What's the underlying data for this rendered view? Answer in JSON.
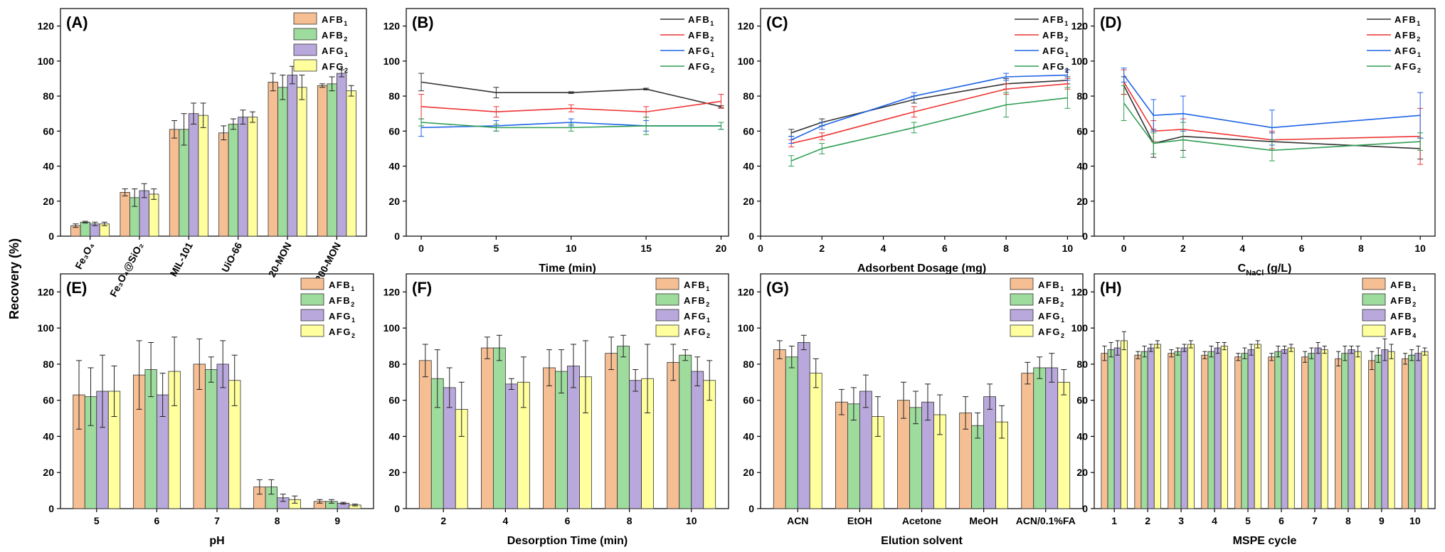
{
  "figure": {
    "y_label": "Recovery (%)"
  },
  "colors": {
    "bar": [
      "#f6bf93",
      "#9edc9d",
      "#b9a8dc",
      "#ffff9e"
    ],
    "line": [
      "#333333",
      "#ee3333",
      "#1e63e6",
      "#2e9e52"
    ]
  },
  "chart_data": [
    {
      "id": "A",
      "title": "(A)",
      "type": "bar",
      "xlabel": "",
      "ylabel": "Recovery (%)",
      "ylim": [
        0,
        130
      ],
      "yticks": [
        0,
        20,
        40,
        60,
        80,
        100,
        120
      ],
      "categories": [
        "Fe₃O₄",
        "Fe₃O₄@SiO₂",
        "MIL-101",
        "UiO-66",
        "20-MON",
        "200-MON"
      ],
      "rotate_labels": true,
      "legend": {
        "position": "top-right"
      },
      "series": [
        {
          "name": "AFB",
          "sub": "1",
          "values": [
            6,
            25,
            61,
            59,
            88,
            86
          ],
          "errors": [
            1,
            2,
            5,
            4,
            5,
            1
          ]
        },
        {
          "name": "AFB",
          "sub": "2",
          "values": [
            8,
            22,
            61,
            64,
            85,
            87
          ],
          "errors": [
            0.5,
            5,
            9,
            3,
            7,
            4
          ]
        },
        {
          "name": "AFG",
          "sub": "1",
          "values": [
            7,
            26,
            70,
            68,
            92,
            93
          ],
          "errors": [
            1,
            4,
            6,
            4,
            5,
            2
          ]
        },
        {
          "name": "AFG",
          "sub": "2",
          "values": [
            7,
            24,
            69,
            68,
            85,
            83
          ],
          "errors": [
            1,
            3,
            7,
            3,
            7,
            3
          ]
        }
      ]
    },
    {
      "id": "B",
      "title": "(B)",
      "type": "line",
      "xlabel": "Time (min)",
      "ylim": [
        0,
        130
      ],
      "xlim": [
        -1,
        20.5
      ],
      "yticks": [
        0,
        20,
        40,
        60,
        80,
        100,
        120
      ],
      "xticks": [
        0,
        5,
        10,
        15,
        20
      ],
      "legend": {
        "position": "top-right"
      },
      "series": [
        {
          "name": "AFB",
          "sub": "1",
          "x": [
            0,
            5,
            10,
            15,
            20
          ],
          "y": [
            88,
            82,
            82,
            84,
            74
          ],
          "errors": [
            5,
            3,
            0.5,
            0.5,
            0.5
          ]
        },
        {
          "name": "AFB",
          "sub": "2",
          "x": [
            0,
            5,
            10,
            15,
            20
          ],
          "y": [
            74,
            71,
            73,
            71,
            77
          ],
          "errors": [
            7,
            3,
            2,
            3,
            4
          ]
        },
        {
          "name": "AFG",
          "sub": "1",
          "x": [
            0,
            5,
            10,
            15,
            20
          ],
          "y": [
            62,
            63,
            65,
            63,
            63
          ],
          "errors": [
            5,
            3,
            2,
            3,
            2
          ]
        },
        {
          "name": "AFG",
          "sub": "2",
          "x": [
            0,
            5,
            10,
            15,
            20
          ],
          "y": [
            65,
            62,
            62,
            63,
            63
          ],
          "errors": [
            2,
            2,
            2,
            5,
            2
          ]
        }
      ]
    },
    {
      "id": "C",
      "title": "(C)",
      "type": "line",
      "xlabel": "Adsorbent Dosage (mg)",
      "ylim": [
        0,
        130
      ],
      "xlim": [
        0,
        10.5
      ],
      "yticks": [
        0,
        20,
        40,
        60,
        80,
        100,
        120
      ],
      "xticks": [
        0,
        2,
        4,
        6,
        8,
        10
      ],
      "legend": {
        "position": "top-right"
      },
      "series": [
        {
          "name": "AFB",
          "sub": "1",
          "x": [
            1,
            2,
            5,
            8,
            10
          ],
          "y": [
            59,
            65,
            78,
            87,
            89
          ],
          "errors": [
            2,
            2,
            2,
            3,
            2
          ]
        },
        {
          "name": "AFB",
          "sub": "2",
          "x": [
            1,
            2,
            5,
            8,
            10
          ],
          "y": [
            53,
            57,
            71,
            84,
            87
          ],
          "errors": [
            2,
            2,
            3,
            3,
            3
          ]
        },
        {
          "name": "AFG",
          "sub": "1",
          "x": [
            1,
            2,
            5,
            8,
            10
          ],
          "y": [
            55,
            63,
            80,
            91,
            92
          ],
          "errors": [
            2,
            2,
            2,
            2,
            3
          ]
        },
        {
          "name": "AFG",
          "sub": "2",
          "x": [
            1,
            2,
            5,
            8,
            10
          ],
          "y": [
            43,
            50,
            62,
            75,
            79
          ],
          "errors": [
            3,
            3,
            3,
            7,
            6
          ]
        }
      ]
    },
    {
      "id": "D",
      "title": "(D)",
      "type": "line",
      "xlabel": "C",
      "xlabel_sub": "NaCl",
      "xlabel_tail": " (g/L)",
      "ylim": [
        0,
        130
      ],
      "xlim": [
        -1,
        10.5
      ],
      "yticks": [
        0,
        20,
        40,
        60,
        80,
        100,
        120
      ],
      "xticks": [
        0,
        2,
        4,
        6,
        8,
        10
      ],
      "legend": {
        "position": "top-right"
      },
      "series": [
        {
          "name": "AFB",
          "sub": "1",
          "x": [
            0,
            1,
            2,
            5,
            10
          ],
          "y": [
            86,
            53,
            57,
            54,
            50
          ],
          "errors": [
            5,
            8,
            8,
            5,
            6
          ]
        },
        {
          "name": "AFB",
          "sub": "2",
          "x": [
            0,
            1,
            2,
            5,
            10
          ],
          "y": [
            88,
            60,
            61,
            55,
            57
          ],
          "errors": [
            7,
            6,
            6,
            5,
            16
          ]
        },
        {
          "name": "AFG",
          "sub": "1",
          "x": [
            0,
            1,
            2,
            5,
            10
          ],
          "y": [
            92,
            69,
            70,
            62,
            69
          ],
          "errors": [
            4,
            9,
            10,
            10,
            13
          ]
        },
        {
          "name": "AFG",
          "sub": "2",
          "x": [
            0,
            1,
            2,
            5,
            10
          ],
          "y": [
            76,
            53,
            55,
            49,
            54
          ],
          "errors": [
            10,
            6,
            10,
            6,
            5
          ]
        }
      ]
    },
    {
      "id": "E",
      "title": "(E)",
      "type": "bar",
      "xlabel": "pH",
      "ylim": [
        0,
        130
      ],
      "yticks": [
        0,
        20,
        40,
        60,
        80,
        100,
        120
      ],
      "categories": [
        "5",
        "6",
        "7",
        "8",
        "9"
      ],
      "legend": {
        "position": "top-right"
      },
      "series": [
        {
          "name": "AFB",
          "sub": "1",
          "values": [
            63,
            74,
            80,
            12,
            4
          ],
          "errors": [
            19,
            19,
            14,
            4,
            1
          ]
        },
        {
          "name": "AFB",
          "sub": "2",
          "values": [
            62,
            77,
            77,
            12,
            4
          ],
          "errors": [
            16,
            15,
            7,
            4,
            1
          ]
        },
        {
          "name": "AFG",
          "sub": "1",
          "values": [
            65,
            63,
            80,
            6,
            3
          ],
          "errors": [
            20,
            12,
            13,
            2,
            0.5
          ]
        },
        {
          "name": "AFG",
          "sub": "2",
          "values": [
            65,
            76,
            71,
            5,
            2
          ],
          "errors": [
            14,
            19,
            14,
            2,
            0.5
          ]
        }
      ]
    },
    {
      "id": "F",
      "title": "(F)",
      "type": "bar",
      "xlabel": "Desorption Time (min)",
      "ylim": [
        0,
        130
      ],
      "yticks": [
        0,
        20,
        40,
        60,
        80,
        100,
        120
      ],
      "categories": [
        "2",
        "4",
        "6",
        "8",
        "10"
      ],
      "legend": {
        "position": "top-right"
      },
      "series": [
        {
          "name": "AFB",
          "sub": "1",
          "values": [
            82,
            89,
            78,
            86,
            81
          ],
          "errors": [
            9,
            6,
            10,
            9,
            10
          ]
        },
        {
          "name": "AFB",
          "sub": "2",
          "values": [
            72,
            89,
            76,
            90,
            85
          ],
          "errors": [
            16,
            7,
            12,
            6,
            3
          ]
        },
        {
          "name": "AFG",
          "sub": "1",
          "values": [
            67,
            69,
            79,
            71,
            76
          ],
          "errors": [
            11,
            3,
            12,
            6,
            8
          ]
        },
        {
          "name": "AFG",
          "sub": "2",
          "values": [
            55,
            70,
            73,
            72,
            71
          ],
          "errors": [
            15,
            14,
            20,
            19,
            11
          ]
        }
      ]
    },
    {
      "id": "G",
      "title": "(G)",
      "type": "bar",
      "xlabel": "Elution solvent",
      "ylim": [
        0,
        130
      ],
      "yticks": [
        0,
        20,
        40,
        60,
        80,
        100,
        120
      ],
      "categories": [
        "ACN",
        "EtOH",
        "Acetone",
        "MeOH",
        "ACN/0.1%FA"
      ],
      "legend": {
        "position": "top-right"
      },
      "series": [
        {
          "name": "AFB",
          "sub": "1",
          "values": [
            88,
            59,
            60,
            53,
            75
          ],
          "errors": [
            5,
            7,
            10,
            9,
            6
          ]
        },
        {
          "name": "AFB",
          "sub": "2",
          "values": [
            84,
            58,
            56,
            46,
            78
          ],
          "errors": [
            6,
            9,
            9,
            7,
            6
          ]
        },
        {
          "name": "AFG",
          "sub": "1",
          "values": [
            92,
            65,
            59,
            62,
            78
          ],
          "errors": [
            4,
            9,
            10,
            7,
            8
          ]
        },
        {
          "name": "AFG",
          "sub": "2",
          "values": [
            75,
            51,
            52,
            48,
            70
          ],
          "errors": [
            8,
            11,
            11,
            9,
            7
          ]
        }
      ]
    },
    {
      "id": "H",
      "title": "(H)",
      "type": "bar",
      "xlabel": "MSPE cycle",
      "ylim": [
        0,
        130
      ],
      "yticks": [
        0,
        20,
        40,
        60,
        80,
        100,
        120
      ],
      "categories": [
        "1",
        "2",
        "3",
        "4",
        "5",
        "6",
        "7",
        "8",
        "9",
        "10"
      ],
      "legend": {
        "position": "top-right"
      },
      "series": [
        {
          "name": "AFB",
          "sub": "1",
          "values": [
            86,
            85,
            86,
            85,
            84,
            84,
            84,
            83,
            82,
            83
          ],
          "errors": [
            4,
            2,
            2,
            2,
            2,
            2,
            3,
            4,
            5,
            3
          ]
        },
        {
          "name": "AFB",
          "sub": "2",
          "values": [
            88,
            87,
            87,
            87,
            86,
            87,
            86,
            86,
            85,
            85
          ],
          "errors": [
            4,
            3,
            2,
            3,
            3,
            3,
            3,
            4,
            4,
            3
          ]
        },
        {
          "name": "AFB",
          "sub": "3",
          "values": [
            89,
            89,
            89,
            89,
            88,
            88,
            89,
            88,
            88,
            86
          ],
          "errors": [
            4,
            2,
            2,
            3,
            3,
            2,
            3,
            2,
            6,
            4
          ]
        },
        {
          "name": "AFB",
          "sub": "4",
          "values": [
            93,
            91,
            91,
            90,
            91,
            89,
            88,
            87,
            87,
            87
          ],
          "errors": [
            5,
            2,
            2,
            2,
            2,
            2,
            2,
            3,
            4,
            2
          ]
        }
      ]
    }
  ]
}
